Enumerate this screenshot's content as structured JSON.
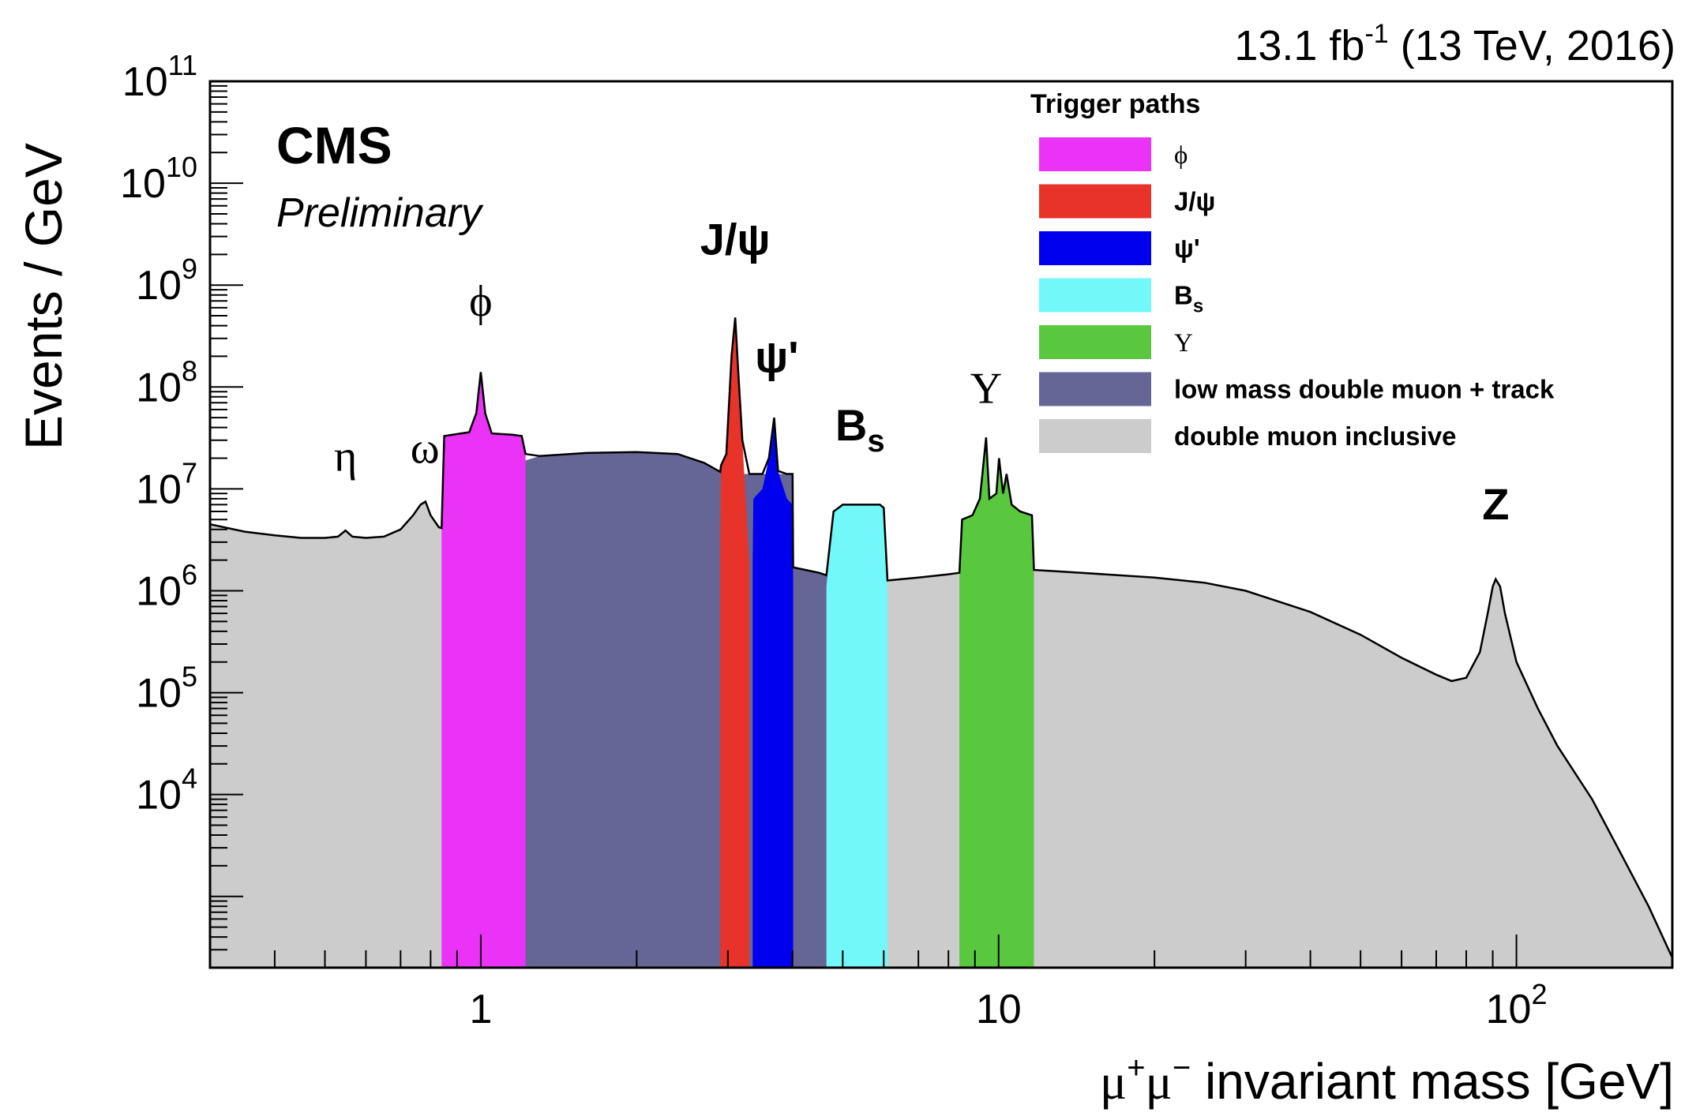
{
  "chart_data": {
    "type": "area",
    "title": "CMS",
    "subtitle": "Preliminary",
    "lumi": {
      "base": "13.1 fb",
      "sup": "-1",
      "rest": " (13 TeV, 2016)"
    },
    "xlabel": {
      "mu": "μ",
      "plus": "+",
      "mu2": "μ",
      "minus": "−",
      "rest": " invariant mass [GeV]"
    },
    "ylabel": "Events / GeV",
    "x_scale": "log",
    "y_scale": "log",
    "xlim": [
      0.3,
      200
    ],
    "ylim": [
      200,
      100000000000
    ],
    "x_ticks": [
      {
        "value": 1,
        "label": "1"
      },
      {
        "value": 10,
        "label": "10"
      },
      {
        "value": 100,
        "base": "10",
        "exp": "2"
      }
    ],
    "y_ticks": [
      {
        "value": 10000,
        "base": "10",
        "exp": "4"
      },
      {
        "value": 100000,
        "base": "10",
        "exp": "5"
      },
      {
        "value": 1000000,
        "base": "10",
        "exp": "6"
      },
      {
        "value": 10000000,
        "base": "10",
        "exp": "7"
      },
      {
        "value": 100000000,
        "base": "10",
        "exp": "8"
      },
      {
        "value": 1000000000,
        "base": "10",
        "exp": "9"
      },
      {
        "value": 10000000000,
        "base": "10",
        "exp": "10"
      },
      {
        "value": 100000000000,
        "base": "10",
        "exp": "11"
      }
    ],
    "legend": {
      "title": "Trigger paths",
      "position": "top-right",
      "entries": [
        {
          "key": "phi",
          "label": "ϕ",
          "font": "serif",
          "color": "#ea33f7"
        },
        {
          "key": "jpsi",
          "label": "J/ψ",
          "font": "sans",
          "color": "#e8332a"
        },
        {
          "key": "psi2s",
          "label": "ψ'",
          "font": "sans",
          "color": "#0000ee"
        },
        {
          "key": "bs",
          "label": "B",
          "sub": "s",
          "font": "sans",
          "color": "#72f8f8"
        },
        {
          "key": "upsilon",
          "label": "Υ",
          "font": "serif",
          "color": "#5ac83e"
        },
        {
          "key": "lowmass",
          "label": "low mass double muon + track",
          "font": "sans",
          "color": "#666696"
        },
        {
          "key": "inclusive",
          "label": "double muon inclusive",
          "font": "sans",
          "color": "#cccccc"
        }
      ]
    },
    "peak_labels": [
      {
        "text": "η",
        "x": 0.548,
        "y": 15000000,
        "font": "serif",
        "bold": false
      },
      {
        "text": "ω",
        "x": 0.78,
        "y": 18000000,
        "font": "serif",
        "bold": false
      },
      {
        "text": "ϕ",
        "x": 1.0,
        "y": 500000000,
        "font": "serif",
        "bold": false
      },
      {
        "text": "J/ψ",
        "x": 3.1,
        "y": 2000000000,
        "font": "sans",
        "bold": true
      },
      {
        "text": "ψ'",
        "x": 3.73,
        "y": 140000000,
        "font": "sans",
        "bold": true
      },
      {
        "text": "B",
        "sub": "s",
        "x": 5.4,
        "y": 30000000,
        "font": "sans",
        "bold": true
      },
      {
        "text": "Υ",
        "x": 9.46,
        "y": 70000000,
        "font": "serif",
        "bold": false
      },
      {
        "text": "Z",
        "x": 91.2,
        "y": 5000000,
        "font": "sans",
        "bold": true
      }
    ],
    "series": [
      {
        "key": "inclusive",
        "name": "double muon inclusive",
        "points": [
          [
            0.3,
            4500000
          ],
          [
            0.35,
            3800000
          ],
          [
            0.4,
            3500000
          ],
          [
            0.45,
            3300000
          ],
          [
            0.5,
            3300000
          ],
          [
            0.53,
            3400000
          ],
          [
            0.548,
            3900000
          ],
          [
            0.565,
            3400000
          ],
          [
            0.6,
            3300000
          ],
          [
            0.65,
            3400000
          ],
          [
            0.7,
            4000000
          ],
          [
            0.74,
            5500000
          ],
          [
            0.765,
            7000000
          ],
          [
            0.782,
            7500000
          ],
          [
            0.8,
            5500000
          ],
          [
            0.83,
            4200000
          ],
          [
            0.87,
            3900000
          ],
          [
            0.93,
            4000000
          ],
          [
            0.97,
            4800000
          ],
          [
            1.0,
            6500000
          ],
          [
            1.02,
            7000000
          ],
          [
            1.04,
            5200000
          ],
          [
            1.1,
            4600000
          ],
          [
            1.3,
            4500000
          ],
          [
            1.6,
            4400000
          ],
          [
            2.0,
            4300000
          ],
          [
            2.4,
            4000000
          ],
          [
            2.7,
            3500000
          ],
          [
            2.9,
            3000000
          ],
          [
            3.0,
            5000000
          ],
          [
            3.08,
            30000000
          ],
          [
            3.1,
            33000000
          ],
          [
            3.13,
            10000000
          ],
          [
            3.2,
            2800000
          ],
          [
            3.35,
            1800000
          ],
          [
            3.5,
            1400000
          ],
          [
            3.6,
            2200000
          ],
          [
            3.686,
            4500000
          ],
          [
            3.75,
            2000000
          ],
          [
            3.9,
            1300000
          ],
          [
            4.1,
            1150000
          ],
          [
            4.4,
            1100000
          ],
          [
            5.0,
            1100000
          ],
          [
            6.0,
            1250000
          ],
          [
            7.0,
            1350000
          ],
          [
            8.0,
            1450000
          ],
          [
            8.8,
            1550000
          ],
          [
            9.3,
            2500000
          ],
          [
            9.46,
            4000000
          ],
          [
            9.6,
            2600000
          ],
          [
            9.8,
            2300000
          ],
          [
            10.02,
            3200000
          ],
          [
            10.2,
            2500000
          ],
          [
            10.36,
            2700000
          ],
          [
            10.6,
            2100000
          ],
          [
            11.5,
            1600000
          ],
          [
            13,
            1550000
          ],
          [
            16,
            1450000
          ],
          [
            20,
            1350000
          ],
          [
            25,
            1200000
          ],
          [
            30,
            1000000
          ],
          [
            40,
            620000
          ],
          [
            50,
            370000
          ],
          [
            60,
            220000
          ],
          [
            70,
            150000
          ],
          [
            75,
            130000
          ],
          [
            80,
            140000
          ],
          [
            85,
            250000
          ],
          [
            88,
            600000
          ],
          [
            90,
            1100000
          ],
          [
            91.2,
            1300000
          ],
          [
            93,
            1100000
          ],
          [
            95,
            600000
          ],
          [
            100,
            200000
          ],
          [
            110,
            70000
          ],
          [
            120,
            30000
          ],
          [
            140,
            9000
          ],
          [
            160,
            2500
          ],
          [
            180,
            800
          ],
          [
            200,
            250
          ]
        ]
      },
      {
        "key": "lowmass",
        "name": "low mass double muon + track",
        "points": [
          [
            1.0,
            7000000
          ],
          [
            1.05,
            15000000
          ],
          [
            1.3,
            21000000
          ],
          [
            1.6,
            22500000
          ],
          [
            2.0,
            23000000
          ],
          [
            2.4,
            22000000
          ],
          [
            2.7,
            18000000
          ],
          [
            2.95,
            14000000
          ],
          [
            3.0,
            14000000
          ],
          [
            3.3,
            14000000
          ],
          [
            3.5,
            14000000
          ],
          [
            4.0,
            14000000
          ],
          [
            4.01,
            1700000
          ],
          [
            4.5,
            1500000
          ],
          [
            4.9,
            1300000
          ]
        ]
      },
      {
        "key": "phi",
        "name": "ϕ",
        "points": [
          [
            0.84,
            3800000
          ],
          [
            0.85,
            33000000
          ],
          [
            0.95,
            36000000
          ],
          [
            0.98,
            55000000
          ],
          [
            1.0,
            140000000
          ],
          [
            1.02,
            55000000
          ],
          [
            1.05,
            35000000
          ],
          [
            1.15,
            34000000
          ],
          [
            1.2,
            33000000
          ],
          [
            1.22,
            22000000
          ]
        ]
      },
      {
        "key": "jpsi",
        "name": "J/ψ",
        "points": [
          [
            2.9,
            3000000
          ],
          [
            2.91,
            17000000
          ],
          [
            2.98,
            22000000
          ],
          [
            3.05,
            200000000
          ],
          [
            3.1,
            480000000
          ],
          [
            3.14,
            150000000
          ],
          [
            3.2,
            30000000
          ],
          [
            3.3,
            1800000
          ]
        ]
      },
      {
        "key": "psi2s",
        "name": "ψ'",
        "points": [
          [
            3.35,
            1800000
          ],
          [
            3.36,
            8000000
          ],
          [
            3.5,
            10000000
          ],
          [
            3.6,
            20000000
          ],
          [
            3.686,
            50000000
          ],
          [
            3.75,
            15000000
          ],
          [
            3.9,
            8000000
          ],
          [
            4.0,
            7000000
          ],
          [
            4.01,
            1300000
          ]
        ]
      },
      {
        "key": "bs",
        "name": "B",
        "points": [
          [
            4.65,
            1100000
          ],
          [
            4.8,
            6000000
          ],
          [
            5.0,
            7000000
          ],
          [
            5.5,
            7000000
          ],
          [
            5.9,
            7000000
          ],
          [
            6.0,
            6500000
          ],
          [
            6.1,
            1200000
          ]
        ]
      },
      {
        "key": "upsilon",
        "name": "Υ",
        "points": [
          [
            8.4,
            1500000
          ],
          [
            8.5,
            5000000
          ],
          [
            8.9,
            5500000
          ],
          [
            9.2,
            8000000
          ],
          [
            9.46,
            32000000
          ],
          [
            9.6,
            8000000
          ],
          [
            9.9,
            9000000
          ],
          [
            10.02,
            20000000
          ],
          [
            10.2,
            9000000
          ],
          [
            10.36,
            14000000
          ],
          [
            10.6,
            7000000
          ],
          [
            11.0,
            6000000
          ],
          [
            11.6,
            5500000
          ],
          [
            11.7,
            1600000
          ]
        ]
      }
    ]
  }
}
